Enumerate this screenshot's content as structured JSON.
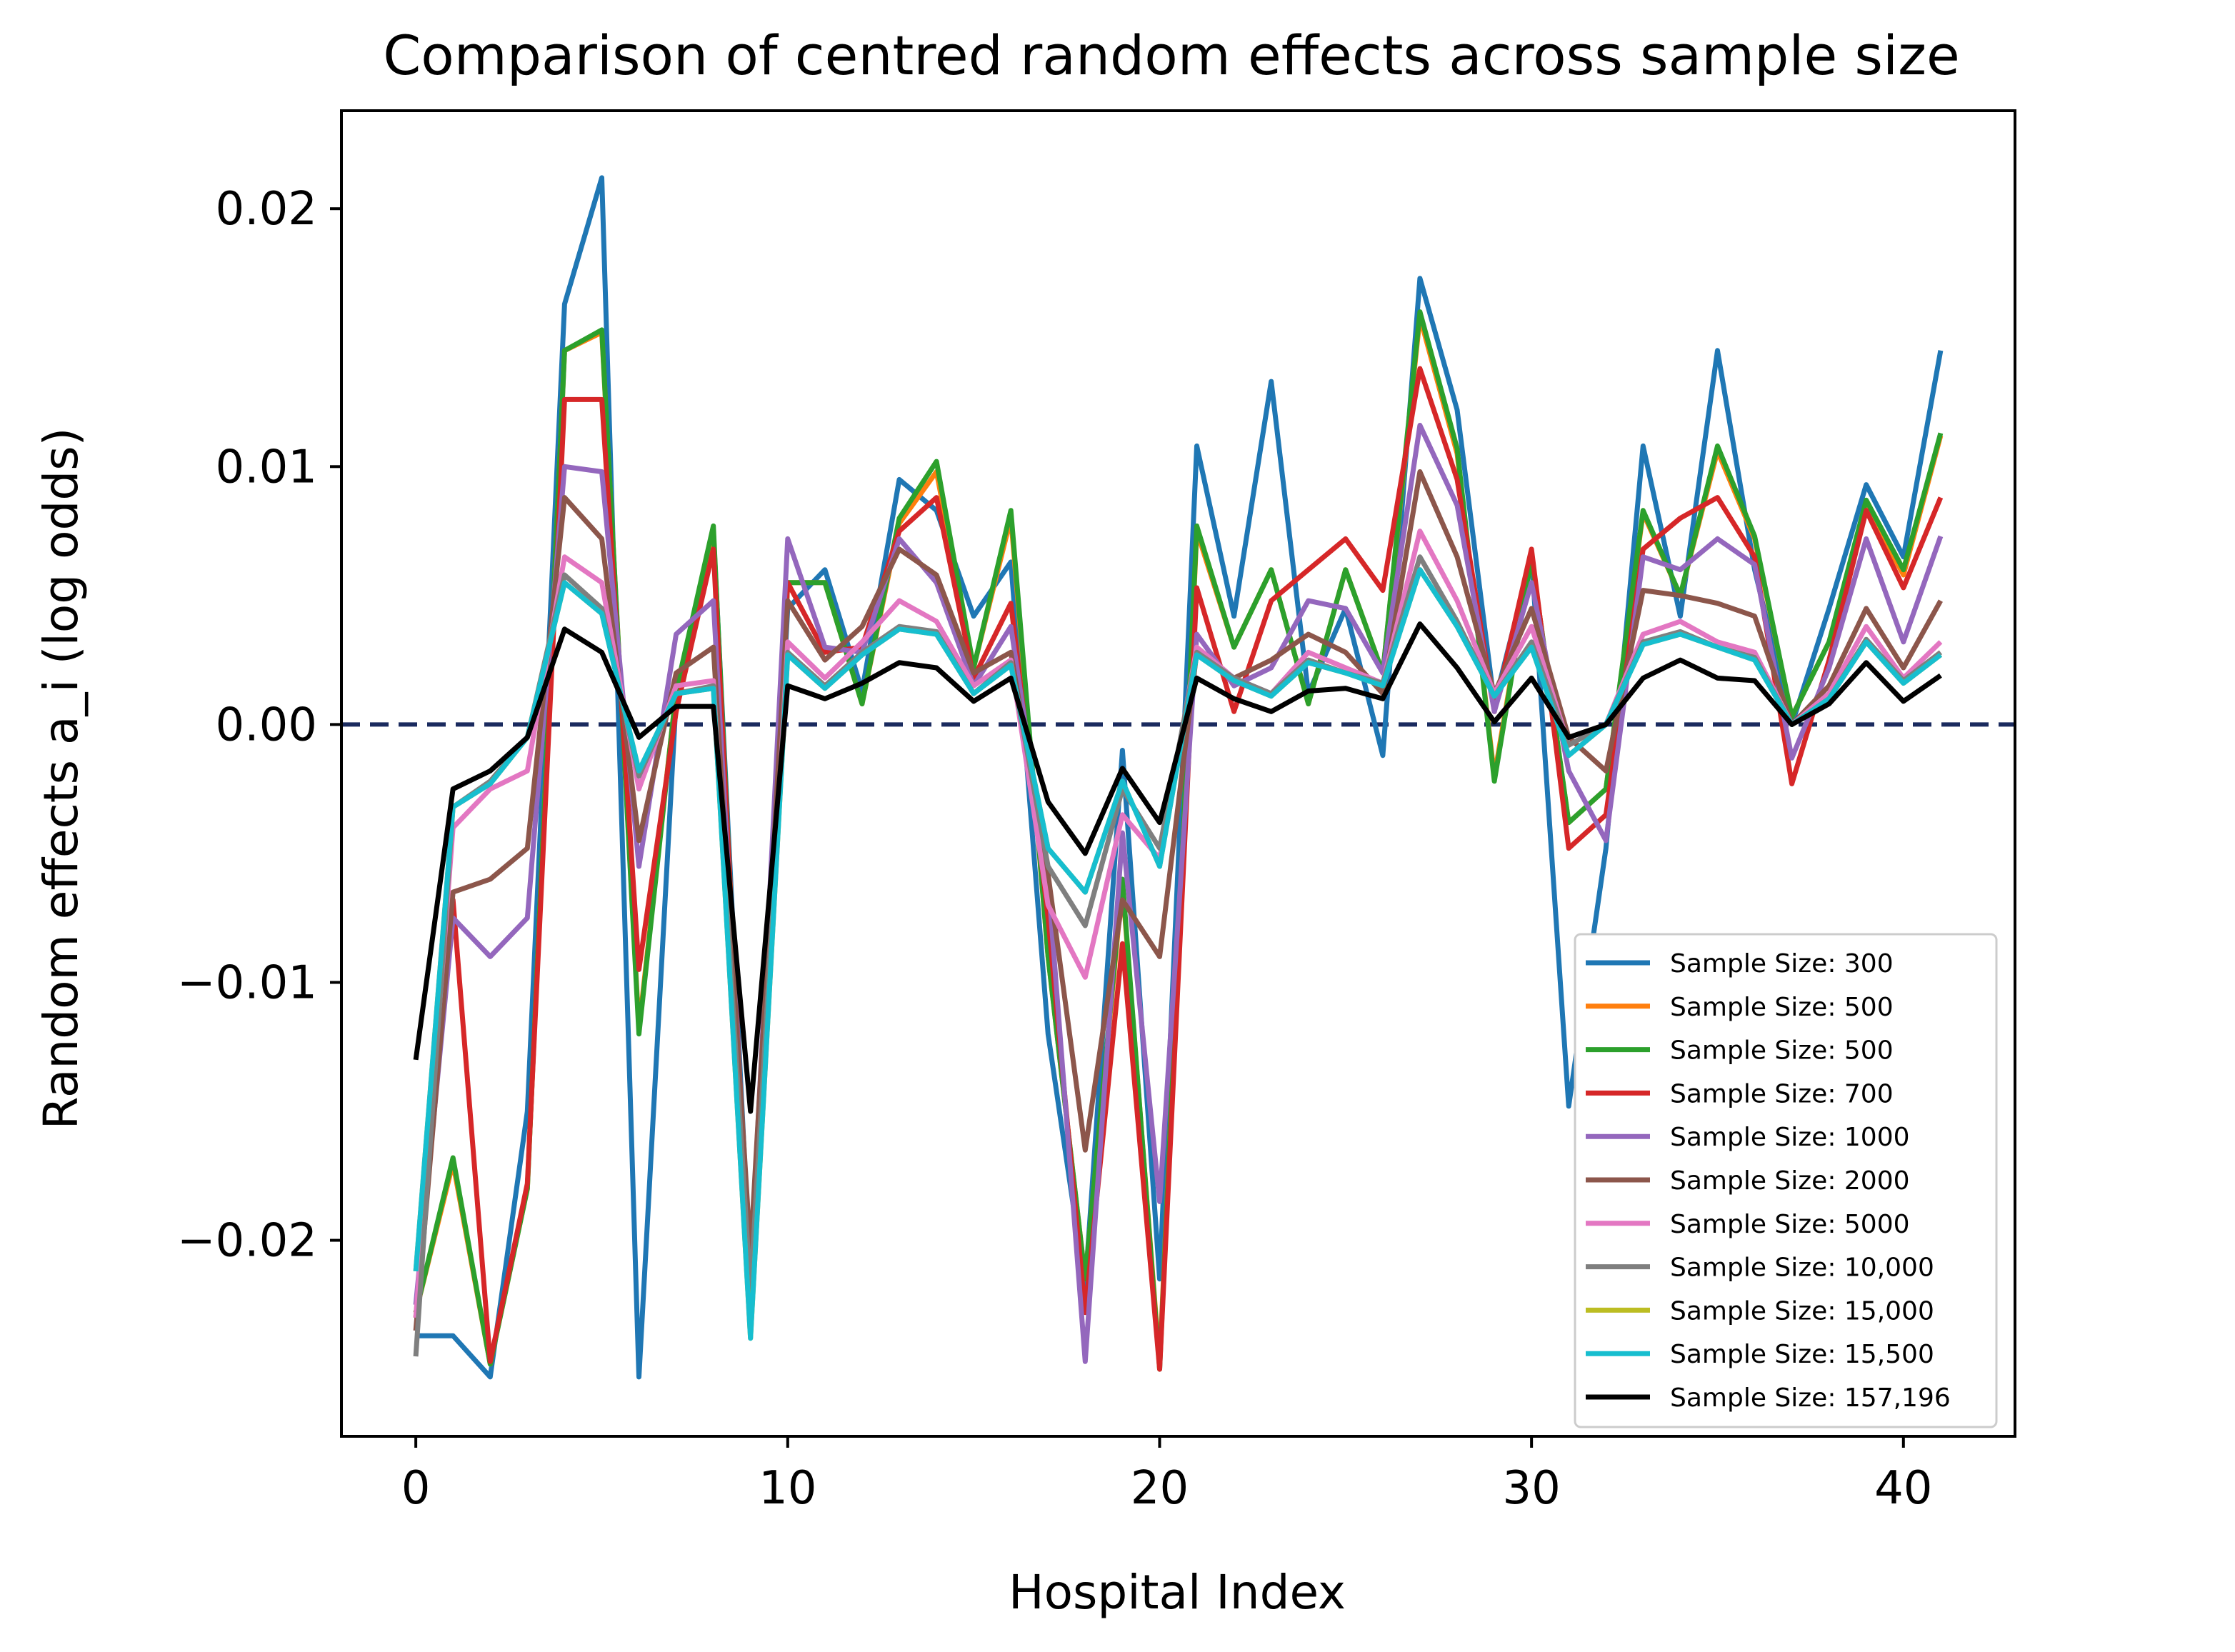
{
  "chart_data": {
    "type": "line",
    "title": "Comparison of centred random effects across sample size",
    "xlabel": "Hospital Index",
    "ylabel": "Random effects a_i (log odds)",
    "xlim": [
      -2.0,
      43.0
    ],
    "ylim": [
      -0.0276,
      0.0238
    ],
    "xticks": [
      0,
      10,
      20,
      30,
      40
    ],
    "xtick_labels": [
      "0",
      "10",
      "20",
      "30",
      "40"
    ],
    "yticks": [
      0.02,
      0.01,
      0.0,
      -0.01,
      -0.02
    ],
    "ytick_labels": [
      "0.02",
      "0.01",
      "0.00",
      "−0.01",
      "−0.02"
    ],
    "reference_line": {
      "y": 0.0,
      "color": "#1a2a5e",
      "style": "dashed"
    },
    "legend_position": "lower-right",
    "x": [
      0,
      1,
      2,
      3,
      4,
      5,
      6,
      7,
      8,
      9,
      10,
      11,
      12,
      13,
      14,
      15,
      16,
      17,
      18,
      19,
      20,
      21,
      22,
      23,
      24,
      25,
      26,
      27,
      28,
      29,
      30,
      31,
      32,
      33,
      34,
      35,
      36,
      37,
      38,
      39,
      40,
      41
    ],
    "series": [
      {
        "name": "Sample Size: 300",
        "color": "#1f77b4",
        "values": [
          -0.0237,
          -0.0237,
          -0.0253,
          -0.015,
          0.0163,
          0.0212,
          -0.0253,
          0.001,
          0.0075,
          -0.0215,
          0.0045,
          0.006,
          0.0013,
          0.0095,
          0.0083,
          0.0042,
          0.0063,
          -0.012,
          -0.0218,
          -0.001,
          -0.0215,
          0.0108,
          0.0042,
          0.0133,
          0.0012,
          0.0045,
          -0.0012,
          0.0173,
          0.0122,
          0.0008,
          0.0065,
          -0.0148,
          -0.0048,
          0.0108,
          0.0042,
          0.0145,
          0.006,
          0.0,
          0.0045,
          0.0093,
          0.0065,
          0.0145
        ]
      },
      {
        "name": "Sample Size: 500",
        "color": "#ff7f0e",
        "values": [
          -0.0228,
          -0.017,
          -0.0248,
          -0.018,
          0.0145,
          0.0152,
          -0.0118,
          0.0013,
          0.0075,
          -0.0228,
          0.0055,
          0.0055,
          0.0008,
          0.0078,
          0.0098,
          0.0022,
          0.008,
          -0.009,
          -0.0215,
          -0.0062,
          -0.0248,
          0.0075,
          0.003,
          0.006,
          0.0008,
          0.006,
          0.002,
          0.0158,
          0.0105,
          -0.002,
          0.0065,
          -0.0038,
          -0.0025,
          0.0082,
          0.005,
          0.0106,
          0.0072,
          0.0003,
          0.0032,
          0.0085,
          0.0058,
          0.0112
        ]
      },
      {
        "name": "Sample Size: 500",
        "color": "#2ca02c",
        "values": [
          -0.0228,
          -0.0168,
          -0.0248,
          -0.018,
          0.0145,
          0.0153,
          -0.012,
          0.0013,
          0.0077,
          -0.023,
          0.0055,
          0.0055,
          0.0008,
          0.008,
          0.0102,
          0.0022,
          0.0083,
          -0.009,
          -0.0215,
          -0.006,
          -0.025,
          0.0077,
          0.003,
          0.006,
          0.0008,
          0.006,
          0.002,
          0.016,
          0.0107,
          -0.0022,
          0.0065,
          -0.0038,
          -0.0025,
          0.0083,
          0.005,
          0.0108,
          0.0073,
          0.0003,
          0.0032,
          0.0087,
          0.006,
          0.0113
        ]
      },
      {
        "name": "Sample Size: 700",
        "color": "#d62728",
        "values": [
          -0.023,
          -0.0068,
          -0.0247,
          -0.0178,
          0.0126,
          0.0126,
          -0.0095,
          0.0005,
          0.0068,
          -0.022,
          0.0055,
          0.0028,
          0.003,
          0.0075,
          0.0088,
          0.0018,
          0.0047,
          -0.0075,
          -0.0228,
          -0.0085,
          -0.025,
          0.0053,
          0.0005,
          0.0048,
          0.006,
          0.0072,
          0.0052,
          0.0138,
          0.0095,
          0.0005,
          0.0068,
          -0.0048,
          -0.0035,
          0.0068,
          0.008,
          0.0088,
          0.0065,
          -0.0023,
          0.0025,
          0.0083,
          0.0053,
          0.0088
        ]
      },
      {
        "name": "Sample Size: 1000",
        "color": "#9467bd",
        "values": [
          -0.0225,
          -0.0075,
          -0.009,
          -0.0075,
          0.01,
          0.0098,
          -0.0055,
          0.0035,
          0.0048,
          -0.0212,
          0.0072,
          0.003,
          0.0028,
          0.0072,
          0.0055,
          0.0015,
          0.0038,
          -0.006,
          -0.0247,
          -0.0042,
          -0.0185,
          0.0035,
          0.0015,
          0.0022,
          0.0048,
          0.0045,
          0.002,
          0.0116,
          0.0085,
          0.0005,
          0.0055,
          -0.0018,
          -0.0045,
          0.0065,
          0.006,
          0.0072,
          0.0062,
          -0.0013,
          0.0022,
          0.0072,
          0.0032,
          0.0073
        ]
      },
      {
        "name": "Sample Size: 2000",
        "color": "#8c564b",
        "values": [
          -0.0235,
          -0.0065,
          -0.006,
          -0.0048,
          0.0088,
          0.0072,
          -0.0045,
          0.002,
          0.003,
          -0.0205,
          0.0048,
          0.0025,
          0.0038,
          0.0068,
          0.0058,
          0.002,
          0.0028,
          -0.0058,
          -0.0165,
          -0.0068,
          -0.009,
          0.0028,
          0.0018,
          0.0025,
          0.0035,
          0.0028,
          0.0012,
          0.0098,
          0.0065,
          0.0012,
          0.0045,
          -0.0005,
          -0.0018,
          0.0052,
          0.005,
          0.0047,
          0.0042,
          0.0,
          0.0015,
          0.0045,
          0.0022,
          0.0048
        ]
      },
      {
        "name": "Sample Size: 5000",
        "color": "#e377c2",
        "values": [
          -0.023,
          -0.004,
          -0.0025,
          -0.0018,
          0.0065,
          0.0055,
          -0.0025,
          0.0015,
          0.0017,
          -0.0225,
          0.0032,
          0.0018,
          0.0032,
          0.0048,
          0.004,
          0.0015,
          0.0025,
          -0.007,
          -0.0098,
          -0.0035,
          -0.0052,
          0.003,
          0.0018,
          0.0012,
          0.0028,
          0.0022,
          0.0016,
          0.0075,
          0.0048,
          0.0012,
          0.0038,
          -0.0008,
          0.0,
          0.0035,
          0.004,
          0.0032,
          0.0028,
          0.0,
          0.0012,
          0.0038,
          0.0018,
          0.0032
        ]
      },
      {
        "name": "Sample Size: 10,000",
        "color": "#7f7f7f",
        "values": [
          -0.0245,
          -0.0032,
          -0.0022,
          -0.0005,
          0.0058,
          0.0045,
          -0.002,
          0.0012,
          0.0015,
          -0.022,
          0.0028,
          0.0015,
          0.0028,
          0.0038,
          0.0036,
          0.0012,
          0.0024,
          -0.0055,
          -0.0078,
          -0.0025,
          -0.0048,
          0.0028,
          0.0018,
          0.0012,
          0.0025,
          0.002,
          0.0016,
          0.0065,
          0.004,
          0.0011,
          0.0032,
          -0.0008,
          0.0,
          0.0032,
          0.0036,
          0.003,
          0.0026,
          0.0,
          0.001,
          0.0033,
          0.0017,
          0.0028
        ]
      },
      {
        "name": "Sample Size: 15,000",
        "color": "#bcbd22",
        "values": [
          -0.0212,
          -0.0032,
          -0.0023,
          -0.0005,
          0.0055,
          0.0043,
          -0.0018,
          0.0012,
          0.0014,
          -0.0238,
          0.0027,
          0.0014,
          0.0027,
          0.0037,
          0.0035,
          0.0012,
          0.0023,
          -0.0048,
          -0.0065,
          -0.0022,
          -0.0055,
          0.0027,
          0.0017,
          0.0011,
          0.0024,
          0.002,
          0.0015,
          0.006,
          0.0038,
          0.0011,
          0.003,
          -0.0012,
          0.0,
          0.0031,
          0.0035,
          0.003,
          0.0025,
          0.0,
          0.001,
          0.0032,
          0.0016,
          0.0027
        ]
      },
      {
        "name": "Sample Size: 15,500",
        "color": "#17becf",
        "values": [
          -0.0212,
          -0.0032,
          -0.0023,
          -0.0005,
          0.0055,
          0.0043,
          -0.0018,
          0.0012,
          0.0014,
          -0.0238,
          0.0027,
          0.0014,
          0.0027,
          0.0037,
          0.0035,
          0.0012,
          0.0023,
          -0.0048,
          -0.0065,
          -0.0022,
          -0.0055,
          0.0027,
          0.0017,
          0.0011,
          0.0024,
          0.002,
          0.0015,
          0.006,
          0.0038,
          0.0011,
          0.003,
          -0.0012,
          0.0,
          0.0031,
          0.0035,
          0.003,
          0.0025,
          0.0,
          0.001,
          0.0032,
          0.0016,
          0.0027
        ]
      },
      {
        "name": "Sample Size: 157,196",
        "color": "#000000",
        "values": [
          -0.013,
          -0.0025,
          -0.0018,
          -0.0005,
          0.0037,
          0.0028,
          -0.0005,
          0.0007,
          0.0007,
          -0.015,
          0.0015,
          0.001,
          0.0016,
          0.0024,
          0.0022,
          0.0009,
          0.0018,
          -0.003,
          -0.005,
          -0.0017,
          -0.0038,
          0.0018,
          0.001,
          0.0005,
          0.0013,
          0.0014,
          0.001,
          0.0039,
          0.0022,
          0.0001,
          0.0018,
          -0.0005,
          0.0,
          0.0018,
          0.0025,
          0.0018,
          0.0017,
          0.0,
          0.0008,
          0.0024,
          0.0009,
          0.0019
        ]
      }
    ]
  }
}
